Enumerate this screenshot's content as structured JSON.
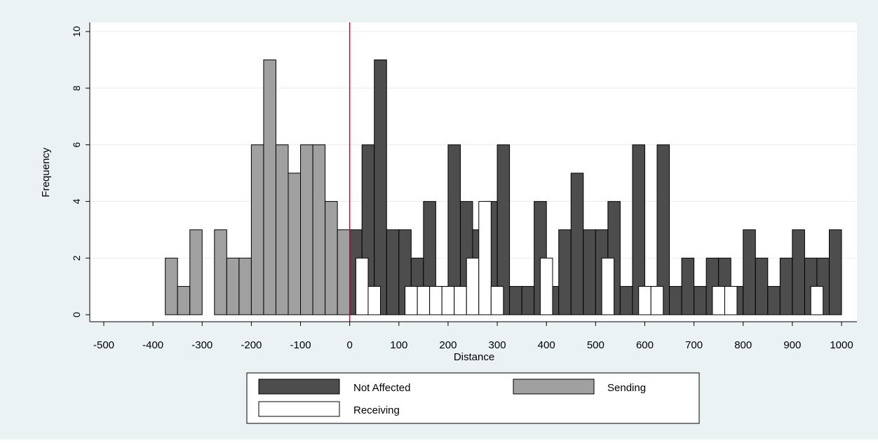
{
  "chart_data": {
    "type": "bar",
    "xlabel": "Distance",
    "ylabel": "Frequency",
    "xlim": [
      -500,
      1000
    ],
    "ylim": [
      0,
      10
    ],
    "xticks": [
      -500,
      -400,
      -300,
      -200,
      -100,
      0,
      100,
      200,
      300,
      400,
      500,
      600,
      700,
      800,
      900,
      1000
    ],
    "yticks": [
      0,
      2,
      4,
      6,
      8,
      10
    ],
    "bin_width": 25,
    "reference_line_x": 0,
    "grid": "horizontal",
    "legend_position": "bottom",
    "series": [
      {
        "name": "Not Affected",
        "color": "#4d4d4d",
        "bins": [
          {
            "x": 0,
            "value": 3
          },
          {
            "x": 25,
            "value": 6
          },
          {
            "x": 50,
            "value": 9
          },
          {
            "x": 75,
            "value": 3
          },
          {
            "x": 100,
            "value": 3
          },
          {
            "x": 125,
            "value": 2
          },
          {
            "x": 150,
            "value": 4
          },
          {
            "x": 175,
            "value": 1
          },
          {
            "x": 200,
            "value": 6
          },
          {
            "x": 225,
            "value": 4
          },
          {
            "x": 250,
            "value": 3
          },
          {
            "x": 275,
            "value": 4
          },
          {
            "x": 300,
            "value": 6
          },
          {
            "x": 325,
            "value": 1
          },
          {
            "x": 350,
            "value": 1
          },
          {
            "x": 375,
            "value": 4
          },
          {
            "x": 400,
            "value": 1
          },
          {
            "x": 425,
            "value": 3
          },
          {
            "x": 450,
            "value": 5
          },
          {
            "x": 475,
            "value": 3
          },
          {
            "x": 500,
            "value": 3
          },
          {
            "x": 525,
            "value": 4
          },
          {
            "x": 550,
            "value": 1
          },
          {
            "x": 575,
            "value": 6
          },
          {
            "x": 600,
            "value": 1
          },
          {
            "x": 625,
            "value": 6
          },
          {
            "x": 650,
            "value": 1
          },
          {
            "x": 675,
            "value": 2
          },
          {
            "x": 700,
            "value": 1
          },
          {
            "x": 725,
            "value": 2
          },
          {
            "x": 750,
            "value": 2
          },
          {
            "x": 775,
            "value": 1
          },
          {
            "x": 800,
            "value": 3
          },
          {
            "x": 825,
            "value": 2
          },
          {
            "x": 850,
            "value": 1
          },
          {
            "x": 875,
            "value": 2
          },
          {
            "x": 900,
            "value": 3
          },
          {
            "x": 925,
            "value": 2
          },
          {
            "x": 950,
            "value": 2
          },
          {
            "x": 975,
            "value": 3
          }
        ]
      },
      {
        "name": "Sending",
        "color": "#a0a0a0",
        "bins": [
          {
            "x": -375,
            "value": 2
          },
          {
            "x": -350,
            "value": 1
          },
          {
            "x": -325,
            "value": 3
          },
          {
            "x": -275,
            "value": 3
          },
          {
            "x": -250,
            "value": 2
          },
          {
            "x": -225,
            "value": 2
          },
          {
            "x": -200,
            "value": 6
          },
          {
            "x": -175,
            "value": 9
          },
          {
            "x": -150,
            "value": 6
          },
          {
            "x": -125,
            "value": 5
          },
          {
            "x": -100,
            "value": 6
          },
          {
            "x": -75,
            "value": 6
          },
          {
            "x": -50,
            "value": 4
          },
          {
            "x": -25,
            "value": 3
          }
        ]
      },
      {
        "name": "Receiving",
        "color": "#ffffff",
        "bins": [
          {
            "x": 12.5,
            "value": 2
          },
          {
            "x": 37.5,
            "value": 1
          },
          {
            "x": 112.5,
            "value": 1
          },
          {
            "x": 137.5,
            "value": 1
          },
          {
            "x": 162.5,
            "value": 1
          },
          {
            "x": 187.5,
            "value": 1
          },
          {
            "x": 212.5,
            "value": 1
          },
          {
            "x": 237.5,
            "value": 2
          },
          {
            "x": 262.5,
            "value": 4
          },
          {
            "x": 287.5,
            "value": 1
          },
          {
            "x": 387.5,
            "value": 2
          },
          {
            "x": 512.5,
            "value": 2
          },
          {
            "x": 587.5,
            "value": 1
          },
          {
            "x": 612.5,
            "value": 1
          },
          {
            "x": 737.5,
            "value": 1
          },
          {
            "x": 762.5,
            "value": 1
          },
          {
            "x": 937.5,
            "value": 1
          }
        ]
      }
    ]
  }
}
